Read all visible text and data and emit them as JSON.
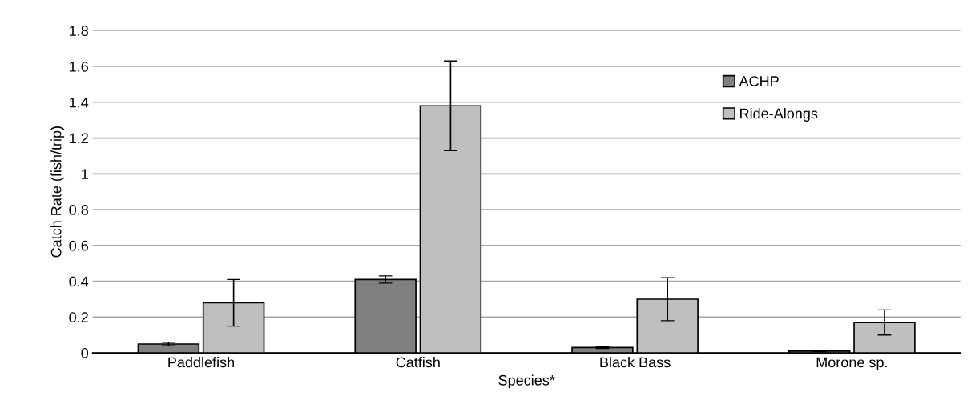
{
  "chart_data": {
    "type": "bar",
    "xlabel": "Species*",
    "ylabel": "Catch Rate (fish/trip)",
    "categories": [
      "Paddlefish",
      "Catfish",
      "Black Bass",
      "Morone sp."
    ],
    "series": [
      {
        "name": "ACHP",
        "color": "#808080",
        "values": [
          0.05,
          0.41,
          0.03,
          0.01
        ],
        "errors": [
          0.01,
          0.02,
          0.005,
          0.003
        ]
      },
      {
        "name": "Ride-Alongs",
        "color": "#bfbfbf",
        "values": [
          0.28,
          1.38,
          0.3,
          0.17
        ],
        "errors": [
          [
            0.15,
            0.41
          ],
          [
            1.13,
            1.63
          ],
          [
            0.18,
            0.42
          ],
          [
            0.1,
            0.24
          ]
        ]
      }
    ],
    "ylim": [
      0,
      1.8
    ],
    "yticks": [
      0,
      0.2,
      0.4,
      0.6,
      0.8,
      1,
      1.2,
      1.4,
      1.6,
      1.8
    ],
    "grid": "y",
    "legend": "top right"
  }
}
